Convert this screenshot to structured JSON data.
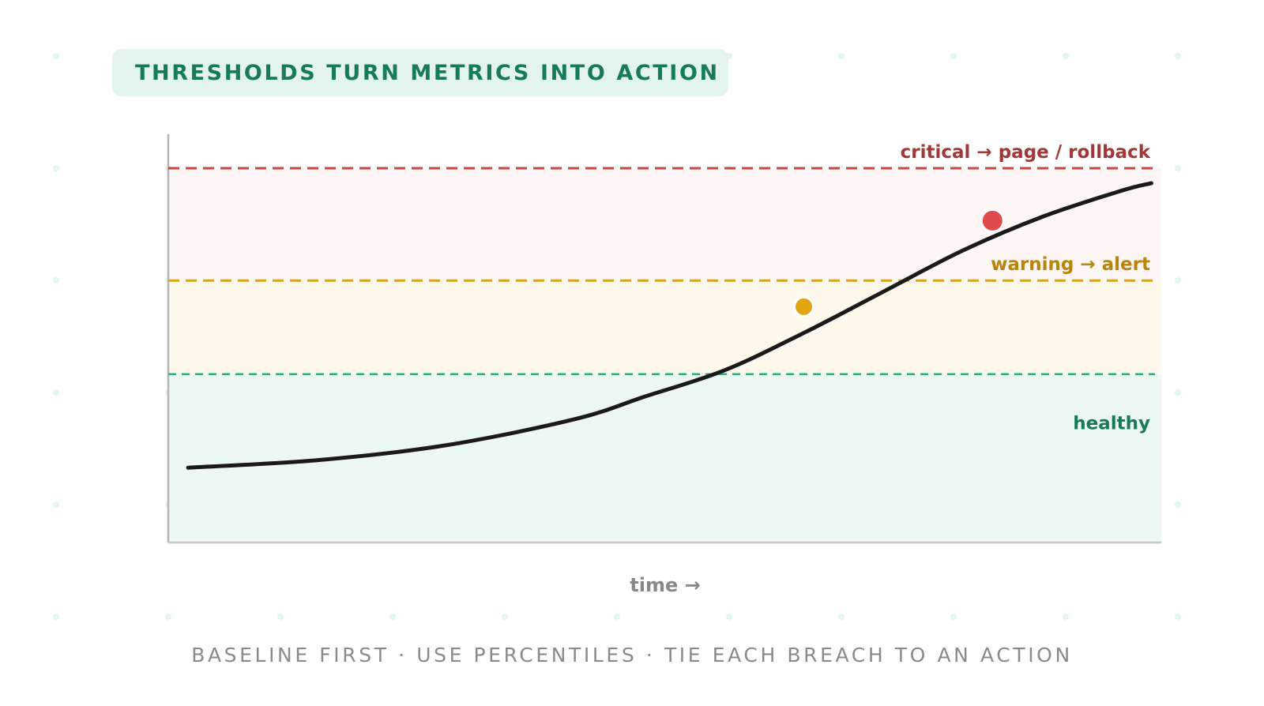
{
  "title": "THRESHOLDS TURN METRICS INTO ACTION",
  "footer": "BASELINE FIRST · USE PERCENTILES · TIE EACH BREACH TO AN ACTION",
  "chart_data": {
    "type": "line",
    "xlabel": "time →",
    "ylabel": "",
    "xlim": [
      0,
      100
    ],
    "ylim": [
      0,
      100
    ],
    "grid": false,
    "thresholds": [
      {
        "name": "critical",
        "label": "critical → page / rollback",
        "value": 100,
        "color": "#c64545"
      },
      {
        "name": "warning",
        "label": "warning → alert",
        "value": 70,
        "color": "#d9a21c"
      },
      {
        "name": "healthy",
        "label": "healthy",
        "value": 45,
        "color": "#2fae7c"
      }
    ],
    "series": [
      {
        "x": [
          2,
          15,
          28,
          41,
          48,
          56,
          64,
          72,
          80,
          88,
          96,
          99
        ],
        "y": [
          20,
          22,
          26,
          33,
          39,
          46,
          56,
          67,
          78,
          87,
          94,
          96
        ],
        "color": "#1a1a1a"
      }
    ],
    "markers": [
      {
        "x": 64,
        "y": 63,
        "color": "#e2a40f"
      },
      {
        "x": 83,
        "y": 86,
        "color": "#e04a4a"
      }
    ]
  }
}
